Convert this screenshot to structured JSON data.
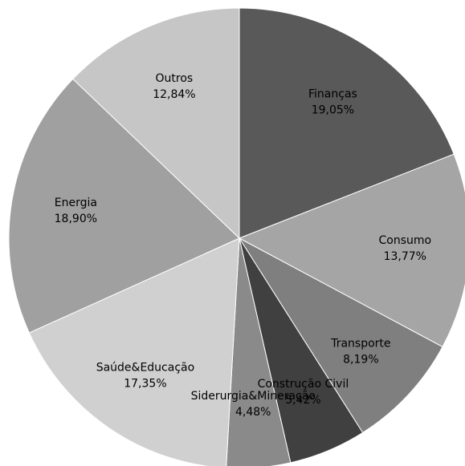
{
  "chart_data": {
    "type": "pie",
    "categories": [
      "Finanças",
      "Consumo",
      "Transporte",
      "Construção Civil",
      "Siderurgia&Mineração",
      "Saúde&Educação",
      "Energia",
      "Outros"
    ],
    "values": [
      19.05,
      13.77,
      8.19,
      5.42,
      4.48,
      17.35,
      18.9,
      12.84
    ],
    "value_labels": [
      "19,05%",
      "13,77%",
      "8,19%",
      "5,42%",
      "4,48%",
      "17,35%",
      "18,90%",
      "12,84%"
    ],
    "colors": [
      "#595959",
      "#a5a5a5",
      "#7f7f7f",
      "#404040",
      "#8a8a8a",
      "#d0d0d0",
      "#a0a0a0",
      "#c6c6c6"
    ]
  }
}
